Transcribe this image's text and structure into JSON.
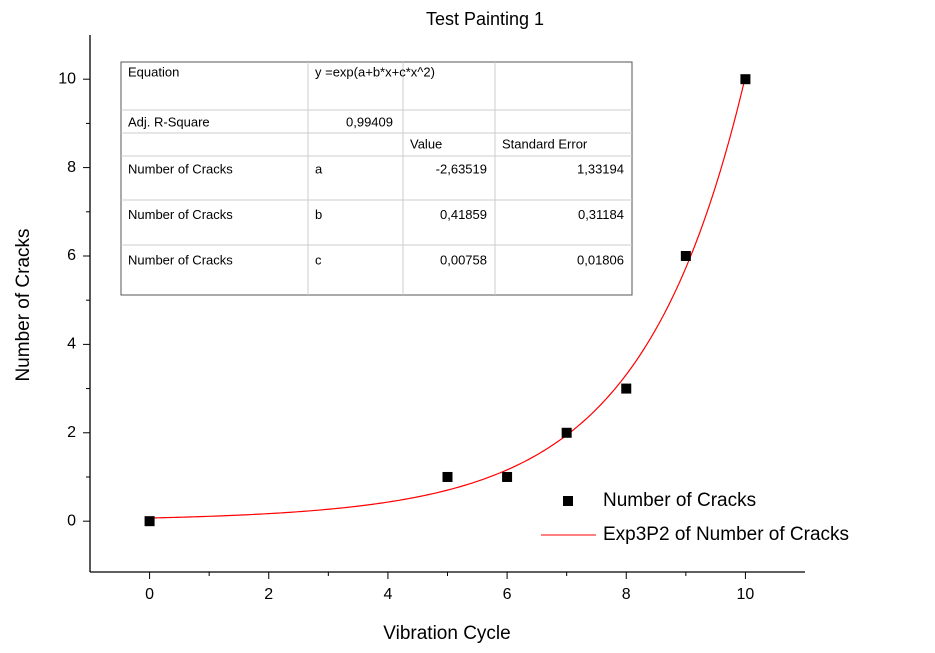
{
  "chart_data": {
    "type": "scatter",
    "title": "Test Painting 1",
    "x_label": "Vibration Cycle",
    "y_label": "Number of Cracks",
    "xlim": [
      -1,
      11
    ],
    "ylim": [
      -1.15,
      11
    ],
    "xticks": [
      0,
      2,
      4,
      6,
      8,
      10
    ],
    "yticks": [
      0,
      2,
      4,
      6,
      8,
      10
    ],
    "series": [
      {
        "name": "Number of Cracks",
        "color": "#000000",
        "x": [
          0,
          5,
          6,
          7,
          8,
          9,
          10
        ],
        "values": [
          0,
          1,
          1,
          2,
          3,
          6,
          10
        ]
      }
    ],
    "fit": {
      "name": "Exp3P2 of Number of Cracks",
      "color": "#ff0000",
      "equation_label": "Equation",
      "equation": "y =exp(a+b*x+c*x^2)",
      "r2_label": "Adj. R-Square",
      "r2": "0,99409",
      "headers": [
        "Value",
        "Standard Error"
      ],
      "params": [
        {
          "series": "Number of Cracks",
          "name": "a",
          "value": {
            "value": -2.63519,
            "label": "-2,63519"
          },
          "error": "1,33194"
        },
        {
          "series": "Number of Cracks",
          "name": "b",
          "value": {
            "value": 0.41859,
            "label": "0,41859"
          },
          "error": "0,31184"
        },
        {
          "series": "Number of Cracks",
          "name": "c",
          "value": {
            "value": 0.00758,
            "label": "0,00758"
          },
          "error": "0,01806"
        }
      ]
    },
    "legend": "lower right"
  }
}
